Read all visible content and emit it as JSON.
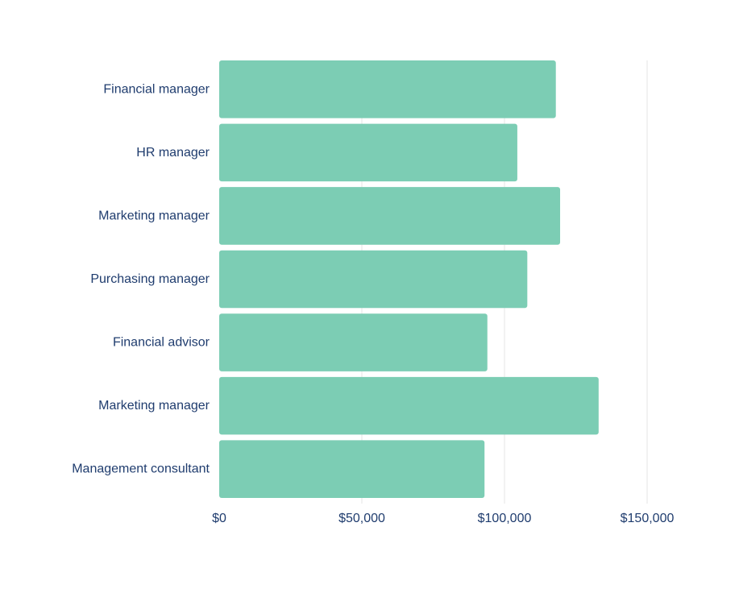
{
  "chart_data": {
    "type": "bar",
    "orientation": "horizontal",
    "title": "",
    "xlabel": "",
    "ylabel": "",
    "categories": [
      "Financial manager",
      "HR manager",
      "Marketing manager",
      "Purchasing manager",
      "Financial advisor",
      "Marketing manager",
      "Management consultant"
    ],
    "values": [
      118000,
      104500,
      119500,
      108000,
      94000,
      133000,
      93000
    ],
    "xlim": [
      0,
      150000
    ],
    "x_ticks": [
      0,
      50000,
      100000,
      150000
    ],
    "x_tick_labels": [
      "$0",
      "$50,000",
      "$100,000",
      "$150,000"
    ],
    "grid": "vertical",
    "legend": "none",
    "colors": {
      "bar": "#7ccdb4",
      "grid": "#e6e6e6",
      "text": "#1f3c6e",
      "background": "#ffffff"
    }
  }
}
